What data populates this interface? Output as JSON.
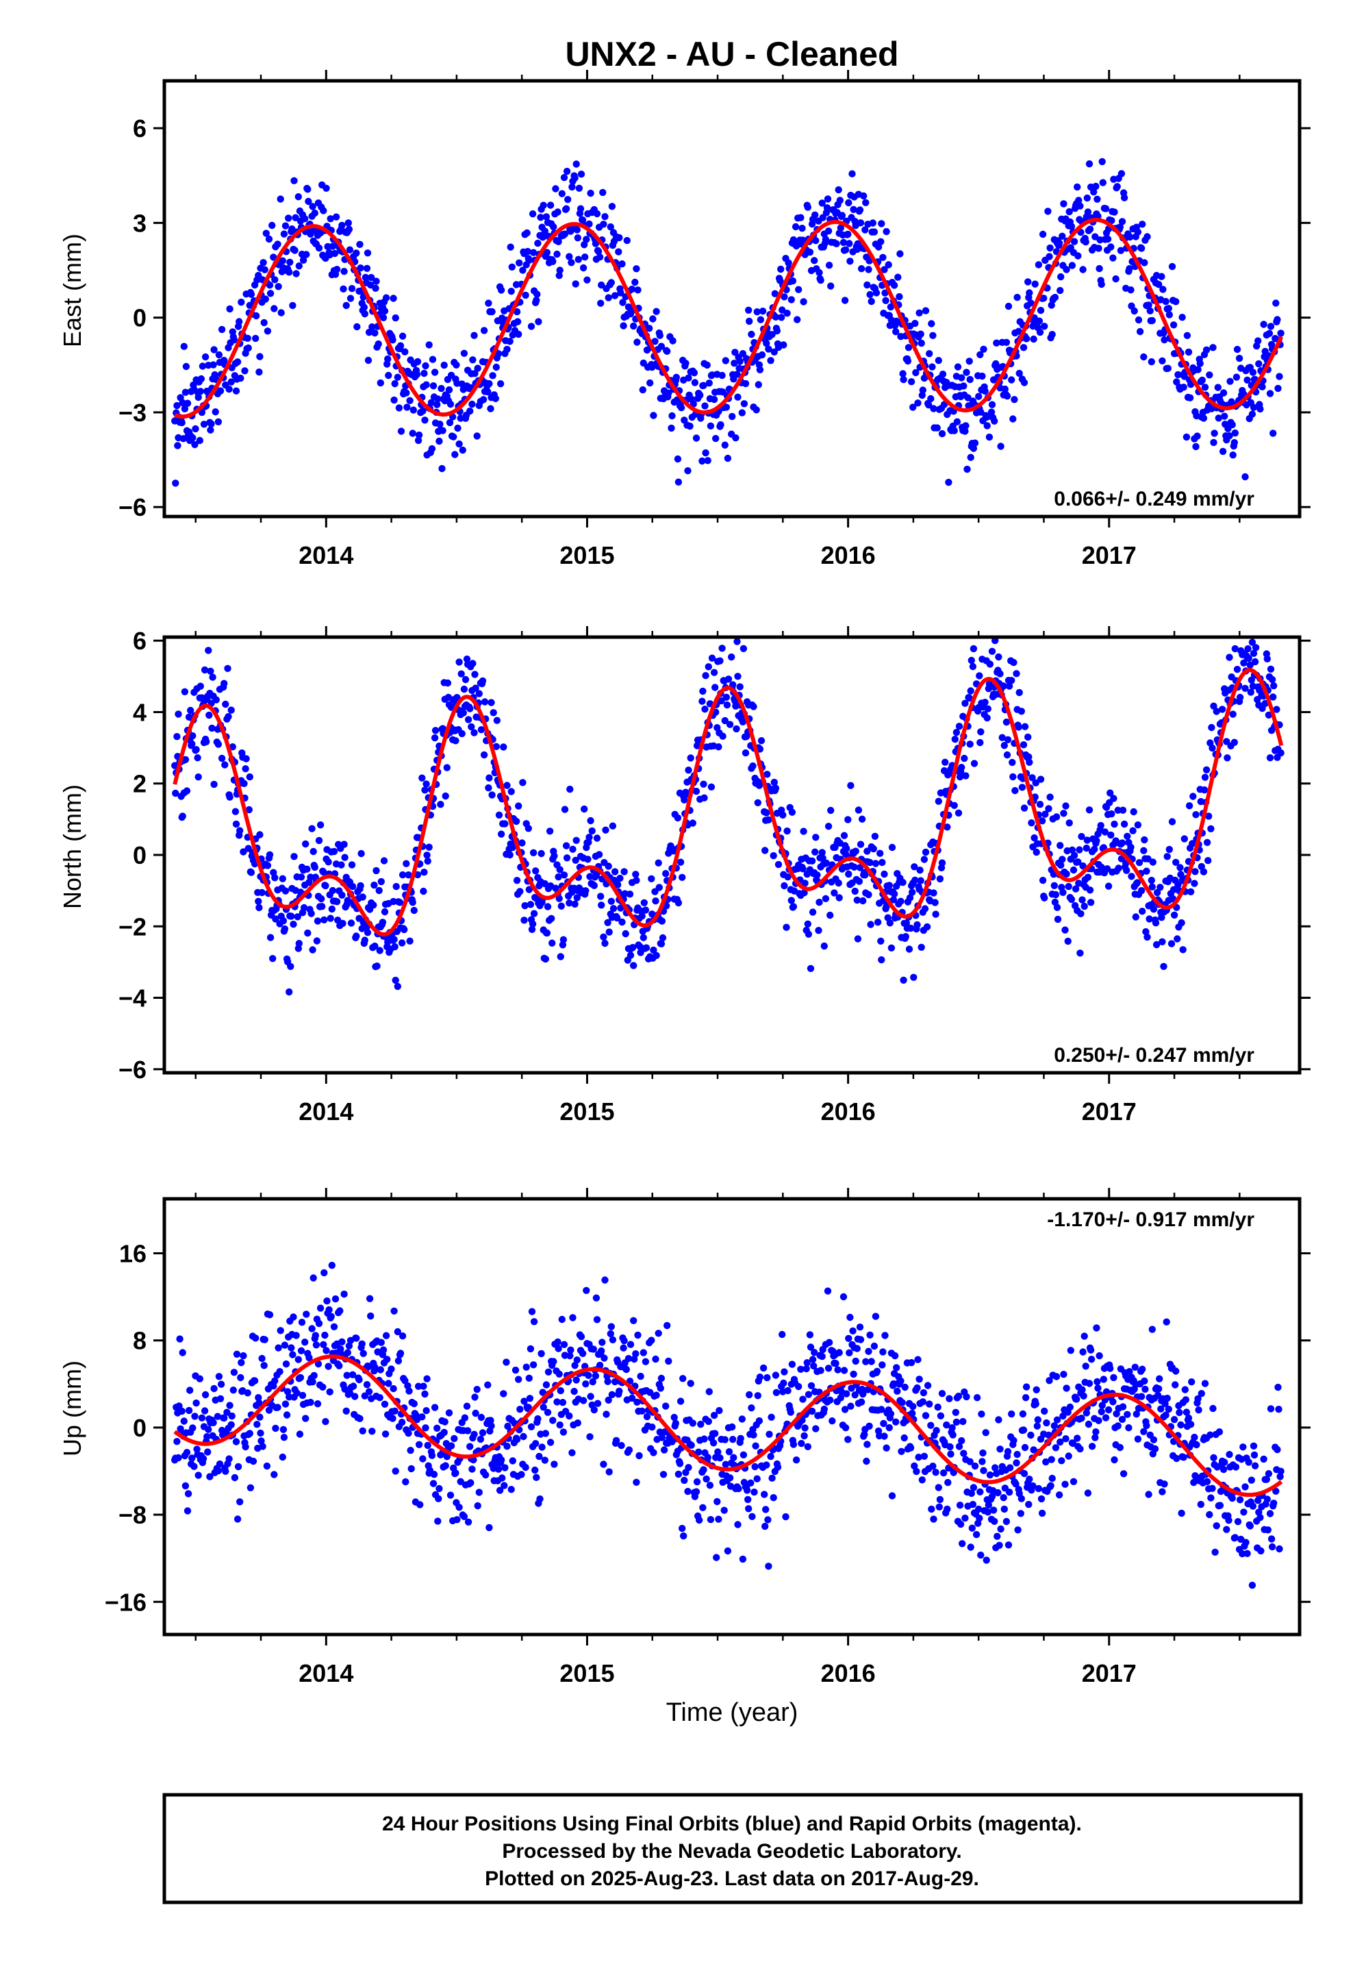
{
  "title": "UNX2  - AU - Cleaned",
  "x_axis_label": "Time (year)",
  "footer": {
    "line1": "24 Hour Positions Using Final Orbits (blue) and Rapid Orbits (magenta).",
    "line2": "Processed by the Nevada Geodetic Laboratory.",
    "line3": "Plotted on 2025-Aug-23. Last data on 2017-Aug-29."
  },
  "colors": {
    "points": "#0000ff",
    "model": "#ff0000",
    "axes": "#000000"
  },
  "chart_data": [
    {
      "type": "scatter",
      "name": "East",
      "ylabel": "East (mm)",
      "xlim": [
        2013.38,
        2017.73
      ],
      "ylim": [
        -6.3,
        7.5
      ],
      "xticks": [
        2014,
        2015,
        2016,
        2017
      ],
      "xtick_labels": [
        "2014",
        "2015",
        "2016",
        "2017"
      ],
      "yticks": [
        -6,
        -3,
        0,
        3,
        6
      ],
      "ytick_labels": [
        "−6",
        "−3",
        "0",
        "3",
        "6"
      ],
      "rate_label": "0.066+/- 0.249 mm/yr",
      "rate_position": "bottom-right",
      "model": {
        "offset": 0.0,
        "trend": 0.066,
        "annual_amplitude": 3.0,
        "annual_peak": 2013.95,
        "semiannual_amplitude": 0.0,
        "semiannual_peak": 0.0
      },
      "noise_sd": 0.85,
      "points_description": "daily positions scattered around the fitted model",
      "x_range_of_data": [
        2013.42,
        2017.66
      ]
    },
    {
      "type": "scatter",
      "name": "North",
      "ylabel": "North (mm)",
      "xlim": [
        2013.38,
        2017.73
      ],
      "ylim": [
        -6.1,
        6.1
      ],
      "xticks": [
        2014,
        2015,
        2016,
        2017
      ],
      "xtick_labels": [
        "2014",
        "2015",
        "2016",
        "2017"
      ],
      "yticks": [
        -6,
        -4,
        -2,
        0,
        2,
        4,
        6
      ],
      "ytick_labels": [
        "−6",
        "−4",
        "−2",
        "0",
        "2",
        "4",
        "6"
      ],
      "rate_label": "0.250+/- 0.247 mm/yr",
      "rate_position": "bottom-right",
      "model": {
        "offset": 0.6,
        "trend": 0.25,
        "annual_amplitude": 2.5,
        "annual_peak": 2013.56,
        "semiannual_amplitude": 1.6,
        "semiannual_peak": 2013.53
      },
      "noise_sd": 0.8,
      "points_description": "daily positions scattered around the fitted model",
      "x_range_of_data": [
        2013.42,
        2017.66
      ]
    },
    {
      "type": "scatter",
      "name": "Up",
      "ylabel": "Up (mm)",
      "xlim": [
        2013.38,
        2017.73
      ],
      "ylim": [
        -19,
        21
      ],
      "xticks": [
        2014,
        2015,
        2016,
        2017
      ],
      "xtick_labels": [
        "2014",
        "2015",
        "2016",
        "2017"
      ],
      "yticks": [
        -16,
        -8,
        0,
        8,
        16
      ],
      "ytick_labels": [
        "−16",
        "−8",
        "0",
        "8",
        "16"
      ],
      "rate_label": "-1.170+/- 0.917 mm/yr",
      "rate_position": "top-right",
      "model": {
        "offset": 0.5,
        "trend": -1.17,
        "annual_amplitude": 4.3,
        "annual_peak": 2014.03,
        "semiannual_amplitude": 0.0,
        "semiannual_peak": 0.0
      },
      "noise_sd": 3.2,
      "points_description": "daily positions scattered around the fitted model",
      "x_range_of_data": [
        2013.42,
        2017.66
      ]
    }
  ]
}
